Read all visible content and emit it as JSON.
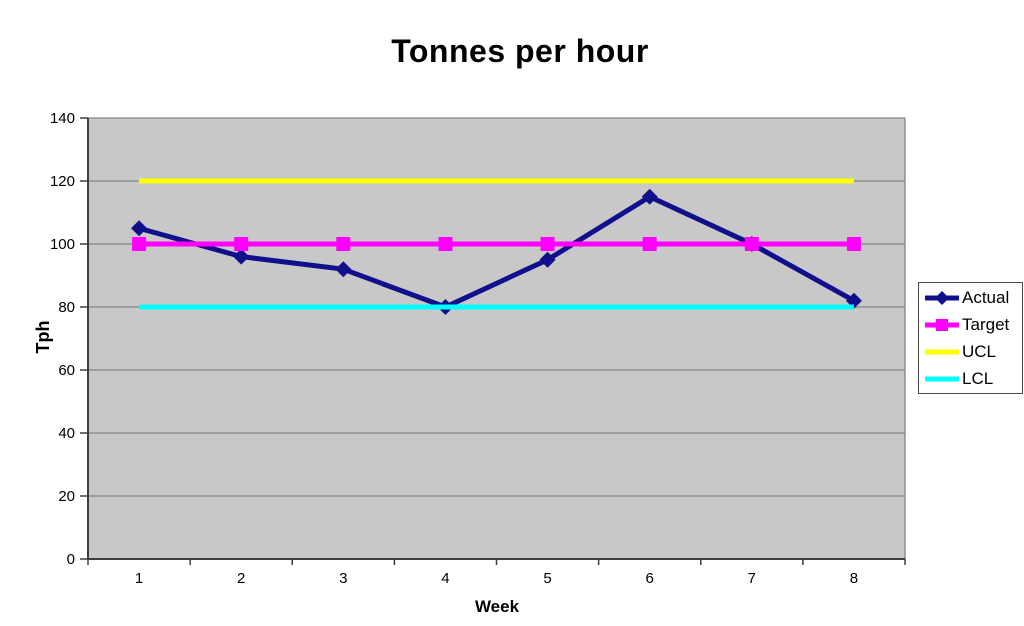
{
  "chart_data": {
    "type": "line",
    "title": "Tonnes per hour",
    "xlabel": "Week",
    "ylabel": "Tph",
    "categories": [
      "1",
      "2",
      "3",
      "4",
      "5",
      "6",
      "7",
      "8"
    ],
    "y_ticks": [
      0,
      20,
      40,
      60,
      80,
      100,
      120,
      140
    ],
    "ylim": [
      0,
      140
    ],
    "grid": "horizontal",
    "legend_position": "right",
    "plot_bg": "#c8c8c8",
    "grid_color": "#858585",
    "axis_color": "#3d3d3d",
    "series": [
      {
        "name": "Actual",
        "values": [
          105,
          96,
          92,
          80,
          95,
          115,
          100,
          82
        ],
        "color": "#10108c",
        "marker": "diamond"
      },
      {
        "name": "Target",
        "values": [
          100,
          100,
          100,
          100,
          100,
          100,
          100,
          100
        ],
        "color": "#ff00ff",
        "marker": "square"
      },
      {
        "name": "UCL",
        "values": [
          120,
          120,
          120,
          120,
          120,
          120,
          120,
          120
        ],
        "color": "#ffff00",
        "marker": "none"
      },
      {
        "name": "LCL",
        "values": [
          80,
          80,
          80,
          80,
          80,
          80,
          80,
          80
        ],
        "color": "#00ffff",
        "marker": "none"
      }
    ]
  }
}
